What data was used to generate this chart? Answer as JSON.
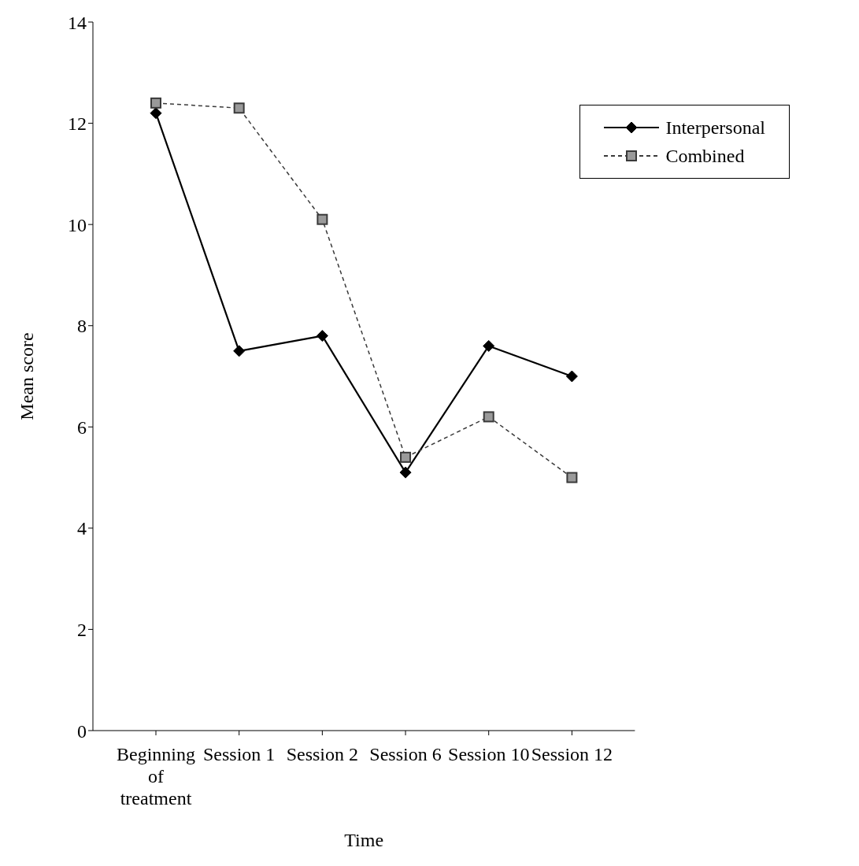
{
  "chart_data": {
    "type": "line",
    "xlabel": "Time",
    "ylabel": "Mean score",
    "categories": [
      "Beginning of treatment",
      "Session 1",
      "Session 2",
      "Session 6",
      "Session 10",
      "Session 12"
    ],
    "series": [
      {
        "name": "Interpersonal",
        "color": "#000000",
        "values": [
          12.2,
          7.5,
          7.8,
          5.1,
          7.6,
          7.0
        ],
        "marker": "diamond",
        "line_style": "solid"
      },
      {
        "name": "Combined",
        "color": "#3a3a3a",
        "values": [
          12.4,
          12.3,
          10.1,
          5.4,
          6.2,
          5.0
        ],
        "marker": "square",
        "line_style": "dashed"
      }
    ],
    "ylim": [
      0,
      14
    ],
    "yticks": [
      0,
      2,
      4,
      6,
      8,
      10,
      12,
      14
    ],
    "grid": false,
    "legend": "top right"
  }
}
